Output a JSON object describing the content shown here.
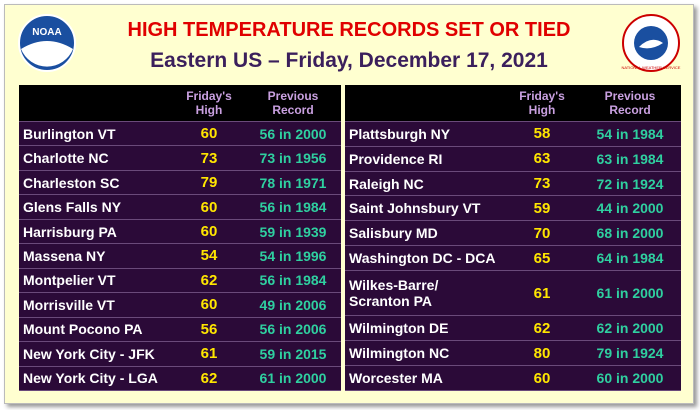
{
  "header": {
    "title": "HIGH TEMPERATURE RECORDS SET OR TIED",
    "subtitle": "Eastern US – Friday, December 17, 2021",
    "left_logo": "NOAA",
    "right_logo": "NATIONAL WEATHER SERVICE"
  },
  "tables": [
    {
      "columns": [
        [
          "Friday's",
          "High"
        ],
        [
          "Previous",
          "Record"
        ]
      ],
      "rows": [
        [
          "Burlington VT",
          60,
          "56 in 2000"
        ],
        [
          "Charlotte NC",
          73,
          "73 in 1956"
        ],
        [
          "Charleston SC",
          79,
          "78 in 1971"
        ],
        [
          "Glens Falls NY",
          60,
          "56 in 1984"
        ],
        [
          "Harrisburg PA",
          60,
          "59 in 1939"
        ],
        [
          "Massena NY",
          54,
          "54 in 1996"
        ],
        [
          "Montpelier VT",
          62,
          "56 in 1984"
        ],
        [
          "Morrisville VT",
          60,
          "49 in 2006"
        ],
        [
          "Mount Pocono PA",
          56,
          "56 in 2006"
        ],
        [
          "New York City - JFK",
          61,
          "59 in 2015"
        ],
        [
          "New York City - LGA",
          62,
          "61 in 2000"
        ]
      ]
    },
    {
      "columns": [
        [
          "Friday's",
          "High"
        ],
        [
          "Previous",
          "Record"
        ]
      ],
      "rows": [
        [
          "Plattsburgh NY",
          58,
          "54 in 1984"
        ],
        [
          "Providence RI",
          63,
          "63 in 1984"
        ],
        [
          "Raleigh NC",
          73,
          "72 in 1924"
        ],
        [
          "Saint Johnsbury VT",
          59,
          "44 in 2000"
        ],
        [
          "Salisbury MD",
          70,
          "68 in 2000"
        ],
        [
          "Washington DC - DCA",
          65,
          "64 in 1984"
        ],
        [
          "Wilkes-Barre/ Scranton PA",
          61,
          "61 in 2000"
        ],
        [
          "Wilmington DE",
          62,
          "62 in 2000"
        ],
        [
          "Wilmington NC",
          80,
          "79 in 1924"
        ],
        [
          "Worcester MA",
          60,
          "60 in 2000"
        ]
      ]
    }
  ]
}
